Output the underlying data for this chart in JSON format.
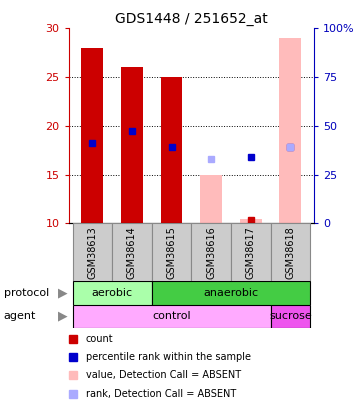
{
  "title": "GDS1448 / 251652_at",
  "samples": [
    "GSM38613",
    "GSM38614",
    "GSM38615",
    "GSM38616",
    "GSM38617",
    "GSM38618"
  ],
  "left_ylim": [
    10,
    30
  ],
  "right_ylim": [
    0,
    100
  ],
  "left_yticks": [
    10,
    15,
    20,
    25,
    30
  ],
  "right_yticks": [
    0,
    25,
    50,
    75,
    100
  ],
  "right_yticklabels": [
    "0",
    "25",
    "50",
    "75",
    "100%"
  ],
  "red_bars": {
    "samples": [
      "GSM38613",
      "GSM38614",
      "GSM38615"
    ],
    "bottoms": [
      10,
      10,
      10
    ],
    "tops": [
      28,
      26,
      25
    ],
    "color": "#cc0000"
  },
  "pink_bars": {
    "samples": [
      "GSM38616",
      "GSM38617",
      "GSM38618"
    ],
    "bottoms": [
      10,
      10,
      10
    ],
    "tops": [
      15,
      10.5,
      29
    ],
    "color": "#ffbbbb"
  },
  "blue_squares": [
    {
      "sample": "GSM38613",
      "value": 18.2
    },
    {
      "sample": "GSM38614",
      "value": 19.5
    },
    {
      "sample": "GSM38615",
      "value": 17.8
    },
    {
      "sample": "GSM38617",
      "value": 16.8
    },
    {
      "sample": "GSM38618",
      "value": 17.8
    }
  ],
  "blue_sq_color": "#0000cc",
  "light_blue_squares": [
    {
      "sample": "GSM38616",
      "value": 16.6
    },
    {
      "sample": "GSM38618",
      "value": 17.8
    }
  ],
  "light_blue_sq_color": "#aaaaff",
  "red_squares": [
    {
      "sample": "GSM38617",
      "value": 10.4
    }
  ],
  "red_sq_color": "#cc0000",
  "protocol_row": [
    {
      "label": "aerobic",
      "start": 0,
      "end": 1,
      "color": "#aaffaa"
    },
    {
      "label": "anaerobic",
      "start": 2,
      "end": 5,
      "color": "#44cc44"
    }
  ],
  "agent_row": [
    {
      "label": "control",
      "start": 0,
      "end": 4,
      "color": "#ffaaff"
    },
    {
      "label": "sucrose",
      "start": 5,
      "end": 5,
      "color": "#ee55ee"
    }
  ],
  "legend_items": [
    {
      "color": "#cc0000",
      "label": "count"
    },
    {
      "color": "#0000cc",
      "label": "percentile rank within the sample"
    },
    {
      "color": "#ffbbbb",
      "label": "value, Detection Call = ABSENT"
    },
    {
      "color": "#aaaaff",
      "label": "rank, Detection Call = ABSENT"
    }
  ],
  "bar_width": 0.55,
  "left_tick_color": "#cc0000",
  "right_tick_color": "#0000bb",
  "dotted_lines": [
    15,
    20,
    25
  ],
  "sample_box_color": "#cccccc",
  "sample_box_edge": "#888888"
}
